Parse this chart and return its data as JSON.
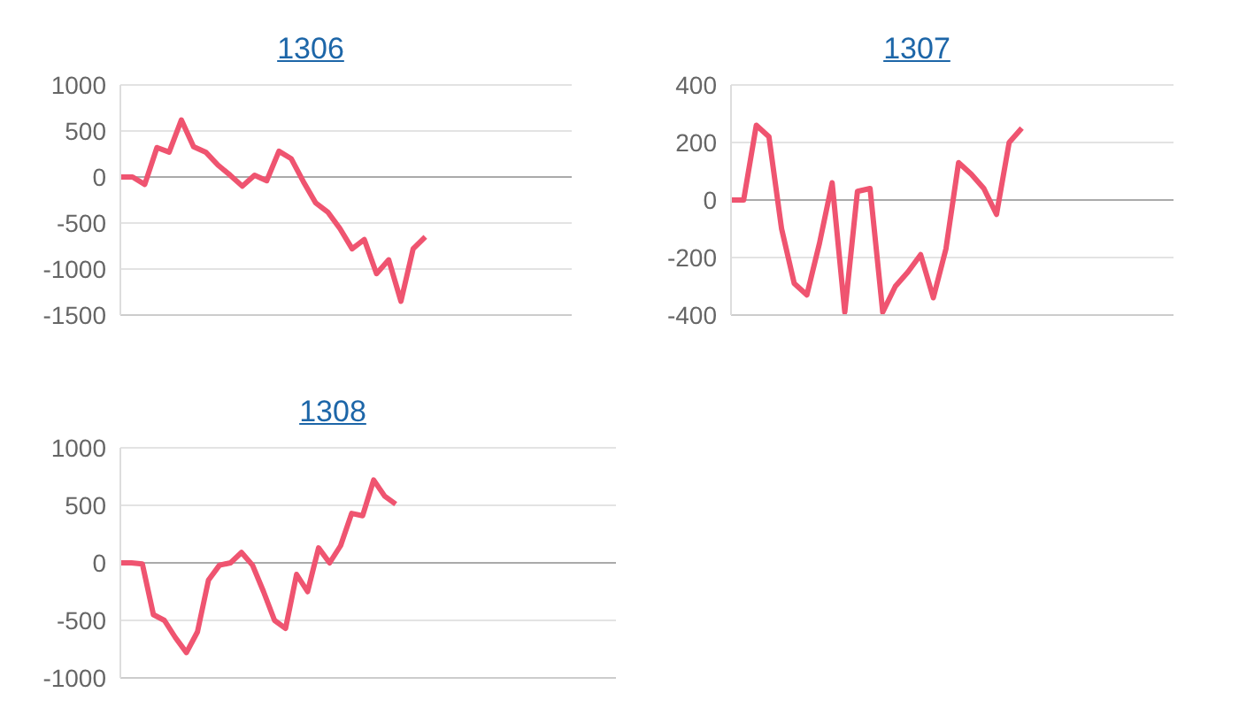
{
  "chart_data": [
    {
      "type": "line",
      "title": "1306",
      "categories": [
        null,
        null,
        null,
        null,
        null,
        null,
        null,
        null,
        null,
        null,
        null,
        null,
        null,
        null,
        null,
        null,
        null,
        null,
        null,
        null,
        null,
        null,
        null,
        null,
        null,
        null,
        null,
        null,
        null,
        null,
        null,
        null,
        null,
        null,
        null,
        null,
        null,
        null
      ],
      "series": [
        {
          "color": "#ef5470",
          "values": [
            0,
            0,
            -80,
            320,
            270,
            620,
            330,
            270,
            130,
            20,
            -100,
            20,
            -40,
            280,
            200,
            -50,
            -280,
            -380,
            -560,
            -780,
            -680,
            -1050,
            -900,
            -1350,
            -780,
            -650,
            null,
            null,
            null,
            null,
            null,
            null,
            null,
            null,
            null,
            null,
            null,
            null
          ]
        }
      ],
      "ylim": [
        -1500,
        1000
      ],
      "yticks": [
        -1500,
        -1000,
        -500,
        0,
        500,
        1000
      ],
      "grid": "y",
      "tick_labels": "y",
      "marker": "none",
      "line_style": "solid"
    },
    {
      "type": "line",
      "title": "1307",
      "categories": [
        null,
        null,
        null,
        null,
        null,
        null,
        null,
        null,
        null,
        null,
        null,
        null,
        null,
        null,
        null,
        null,
        null,
        null,
        null,
        null,
        null,
        null,
        null,
        null,
        null,
        null,
        null,
        null,
        null,
        null,
        null,
        null,
        null,
        null,
        null,
        null
      ],
      "series": [
        {
          "color": "#ef5470",
          "values": [
            0,
            0,
            260,
            220,
            -100,
            -290,
            -330,
            -150,
            60,
            -390,
            30,
            40,
            -390,
            -300,
            -250,
            -190,
            -340,
            -170,
            130,
            90,
            40,
            -50,
            200,
            250,
            null,
            null,
            null,
            null,
            null,
            null,
            null,
            null,
            null,
            null,
            null,
            null
          ]
        }
      ],
      "ylim": [
        -400,
        400
      ],
      "yticks": [
        -400,
        -200,
        0,
        200,
        400
      ],
      "grid": "y",
      "tick_labels": "y",
      "marker": "none",
      "line_style": "solid"
    },
    {
      "type": "line",
      "title": "1308",
      "categories": [
        null,
        null,
        null,
        null,
        null,
        null,
        null,
        null,
        null,
        null,
        null,
        null,
        null,
        null,
        null,
        null,
        null,
        null,
        null,
        null,
        null,
        null,
        null,
        null,
        null,
        null,
        null,
        null,
        null,
        null,
        null,
        null,
        null,
        null,
        null,
        null,
        null,
        null,
        null,
        null,
        null,
        null,
        null,
        null,
        null,
        null
      ],
      "series": [
        {
          "color": "#ef5470",
          "values": [
            0,
            0,
            -10,
            -450,
            -500,
            -650,
            -780,
            -600,
            -150,
            -20,
            0,
            90,
            -20,
            -250,
            -500,
            -570,
            -100,
            -250,
            130,
            0,
            150,
            430,
            410,
            720,
            580,
            510,
            null,
            null,
            null,
            null,
            null,
            null,
            null,
            null,
            null,
            null,
            null,
            null,
            null,
            null,
            null,
            null,
            null,
            null,
            null,
            null
          ]
        }
      ],
      "ylim": [
        -1000,
        1000
      ],
      "yticks": [
        -1000,
        -500,
        0,
        500,
        1000
      ],
      "grid": "y",
      "tick_labels": "y",
      "marker": "none",
      "line_style": "solid"
    }
  ]
}
